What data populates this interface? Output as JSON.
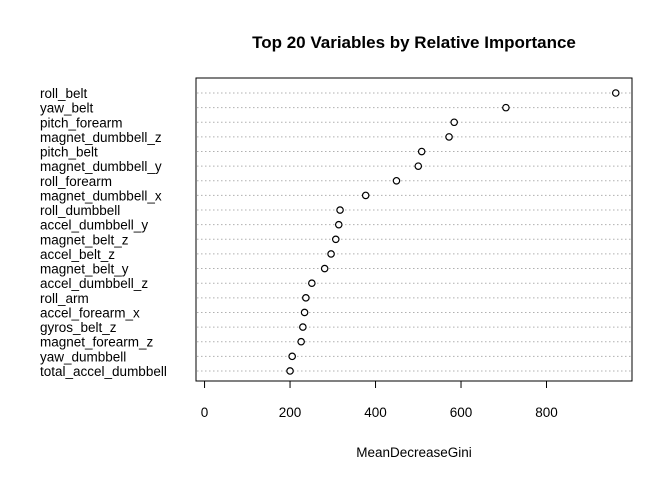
{
  "chart_data": {
    "type": "scatter",
    "title": "Top 20 Variables by Relative Importance",
    "xlabel": "MeanDecreaseGini",
    "xlim": [
      -20,
      1000
    ],
    "xticks": [
      0,
      200,
      400,
      600,
      800
    ],
    "grid": true,
    "categories": [
      "roll_belt",
      "yaw_belt",
      "pitch_forearm",
      "magnet_dumbbell_z",
      "pitch_belt",
      "magnet_dumbbell_y",
      "roll_forearm",
      "magnet_dumbbell_x",
      "roll_dumbbell",
      "accel_dumbbell_y",
      "magnet_belt_z",
      "accel_belt_z",
      "magnet_belt_y",
      "accel_dumbbell_z",
      "roll_arm",
      "accel_forearm_x",
      "gyros_belt_z",
      "magnet_forearm_z",
      "yaw_dumbbell",
      "total_accel_dumbbell"
    ],
    "values": [
      962,
      705,
      584,
      572,
      508,
      500,
      449,
      377,
      317,
      314,
      307,
      296,
      281,
      251,
      237,
      234,
      230,
      226,
      205,
      200
    ]
  }
}
